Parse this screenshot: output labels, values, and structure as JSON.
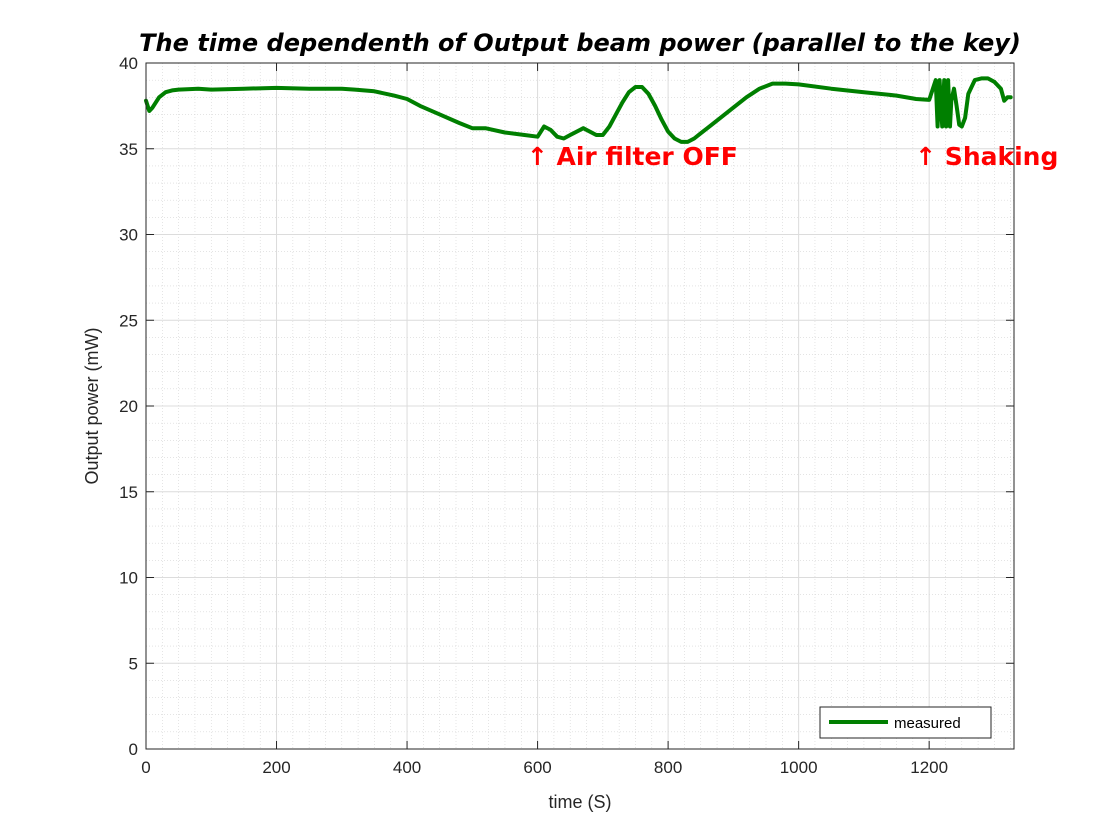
{
  "chart_data": {
    "type": "line",
    "title": "The time dependenth of Output beam power (parallel to the key)",
    "xlabel": "time (S)",
    "ylabel": "Output power (mW)",
    "xlim": [
      0,
      1330
    ],
    "ylim": [
      0,
      40
    ],
    "xticks": [
      0,
      200,
      400,
      600,
      800,
      1000,
      1200
    ],
    "yticks": [
      0,
      5,
      10,
      15,
      20,
      25,
      30,
      35,
      40
    ],
    "grid": true,
    "minor_grid": true,
    "legend_position": "bottom-right",
    "annotations": [
      {
        "text": "↑ Air filter OFF",
        "x": 605,
        "y": 34.3
      },
      {
        "text": "↑ Shaking",
        "x": 1200,
        "y": 34.3
      }
    ],
    "series": [
      {
        "name": "measured",
        "color": "#007f00",
        "x": [
          0,
          5,
          10,
          20,
          30,
          40,
          50,
          80,
          100,
          150,
          200,
          250,
          300,
          320,
          350,
          380,
          400,
          420,
          450,
          480,
          500,
          520,
          550,
          580,
          600,
          610,
          620,
          630,
          640,
          650,
          670,
          690,
          700,
          710,
          720,
          730,
          740,
          750,
          760,
          770,
          780,
          790,
          800,
          810,
          820,
          830,
          840,
          850,
          860,
          880,
          900,
          920,
          940,
          960,
          980,
          1000,
          1050,
          1100,
          1150,
          1180,
          1200,
          1210,
          1213,
          1216,
          1220,
          1223,
          1226,
          1229,
          1232,
          1234,
          1238,
          1242,
          1246,
          1250,
          1255,
          1260,
          1270,
          1280,
          1290,
          1300,
          1310,
          1315,
          1320,
          1325
        ],
        "y": [
          37.8,
          37.2,
          37.4,
          38.0,
          38.3,
          38.4,
          38.45,
          38.5,
          38.45,
          38.5,
          38.55,
          38.5,
          38.5,
          38.45,
          38.35,
          38.1,
          37.9,
          37.5,
          37.0,
          36.5,
          36.2,
          36.2,
          35.95,
          35.8,
          35.7,
          36.3,
          36.1,
          35.7,
          35.6,
          35.8,
          36.2,
          35.8,
          35.8,
          36.3,
          37.0,
          37.7,
          38.3,
          38.6,
          38.6,
          38.2,
          37.5,
          36.7,
          36.0,
          35.6,
          35.4,
          35.4,
          35.6,
          35.9,
          36.2,
          36.8,
          37.4,
          38.0,
          38.5,
          38.8,
          38.8,
          38.75,
          38.5,
          38.3,
          38.1,
          37.9,
          37.85,
          39.0,
          36.3,
          39.0,
          36.3,
          39.0,
          36.3,
          39.0,
          36.3,
          37.8,
          38.5,
          37.5,
          36.4,
          36.3,
          36.8,
          38.2,
          39.0,
          39.1,
          39.1,
          38.9,
          38.5,
          37.8,
          38.0,
          38.0
        ]
      }
    ]
  }
}
